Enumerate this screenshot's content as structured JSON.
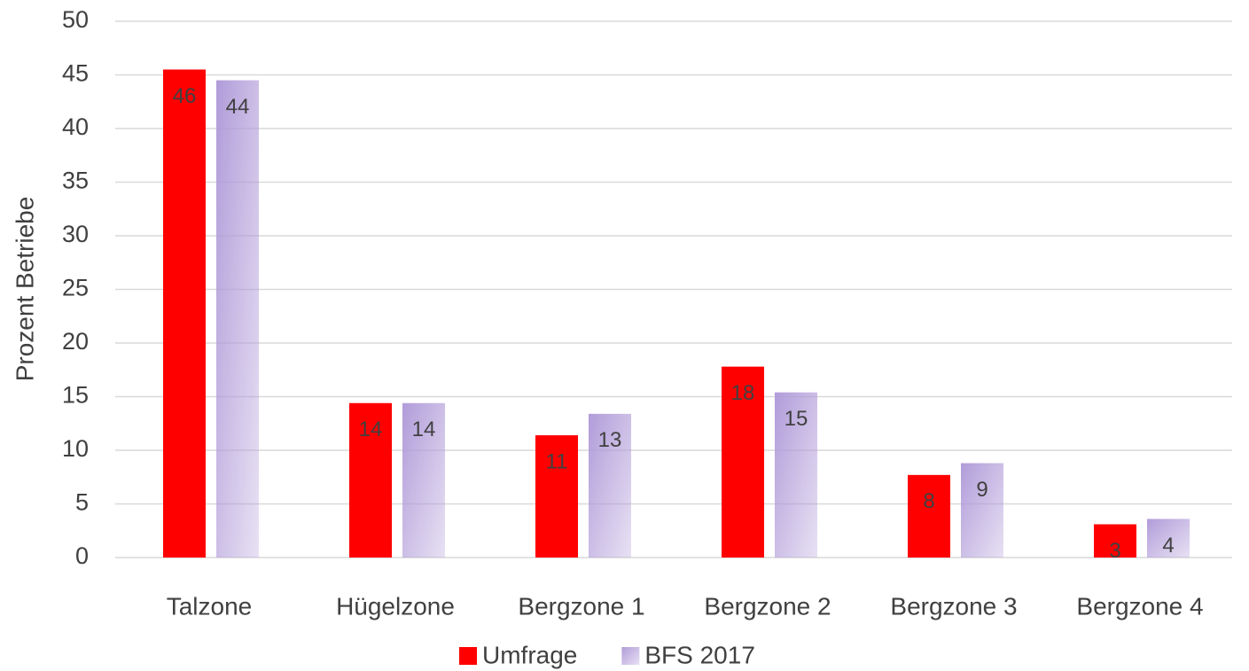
{
  "chart_data": {
    "type": "bar",
    "y_label": "Prozent Betriebe",
    "categories": [
      "Talzone",
      "Hügelzone",
      "Bergzone 1",
      "Bergzone 2",
      "Bergzone 3",
      "Bergzone 4"
    ],
    "series": [
      {
        "name": "Umfrage",
        "color": "#ff0000",
        "values": [
          45.5,
          14.4,
          11.4,
          17.8,
          7.7,
          3.1
        ],
        "value_labels": [
          "46",
          "14",
          "11",
          "18",
          "8",
          "3"
        ]
      },
      {
        "name": "BFS 2017",
        "color": "#b19cd9",
        "values": [
          44.5,
          14.4,
          13.4,
          15.4,
          8.8,
          3.6
        ],
        "value_labels": [
          "44",
          "14",
          "13",
          "15",
          "9",
          "4"
        ]
      }
    ],
    "ylim": [
      0,
      50
    ],
    "yticks": [
      0,
      5,
      10,
      15,
      20,
      25,
      30,
      35,
      40,
      45,
      50
    ],
    "grid": true,
    "legend": "bottom"
  }
}
